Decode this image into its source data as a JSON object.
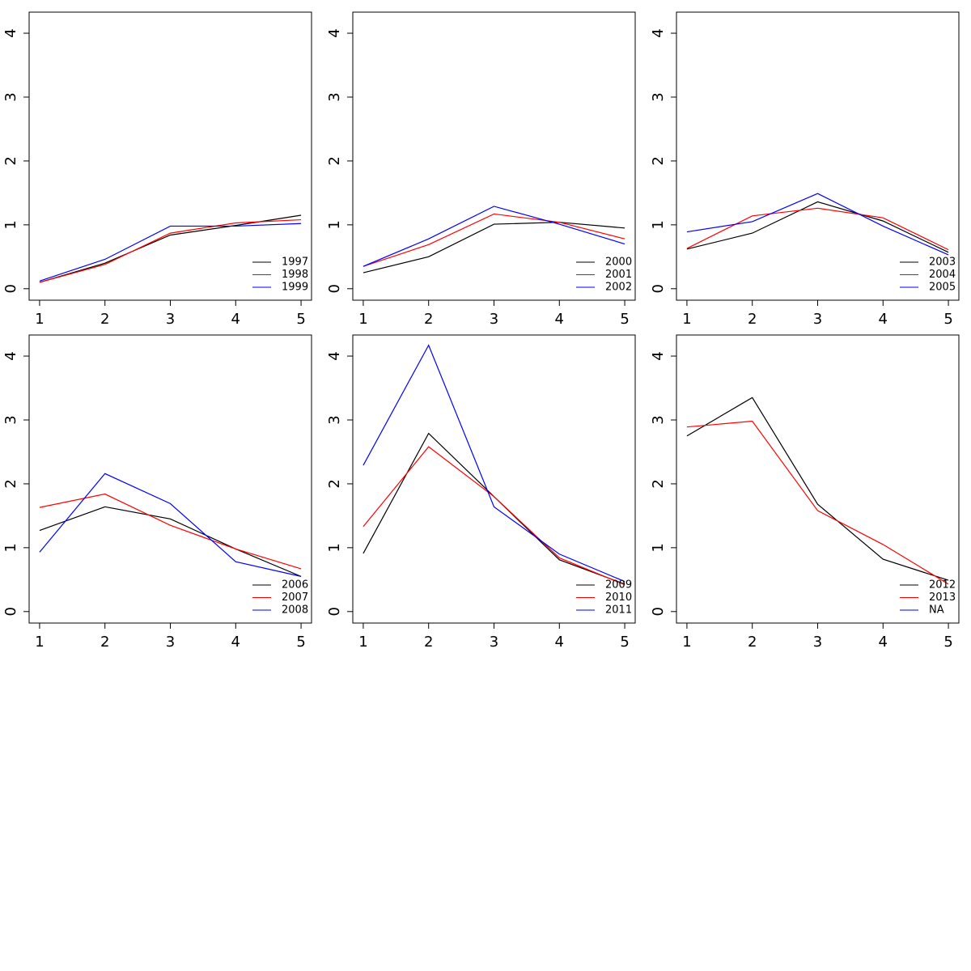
{
  "chart_data": [
    {
      "type": "line",
      "x": [
        1,
        2,
        3,
        4,
        5
      ],
      "xlim": [
        0.84,
        5.16
      ],
      "ylim": [
        -0.18,
        4.33
      ],
      "xticks": [
        1,
        2,
        3,
        4,
        5
      ],
      "yticks": [
        0,
        1,
        2,
        3,
        4
      ],
      "legend": "bottomright",
      "series": [
        {
          "name": "1997",
          "color": "#000000",
          "values": [
            0.1,
            0.4,
            0.84,
            0.99,
            1.15
          ]
        },
        {
          "name": "1998",
          "color": "#ff0000",
          "values": [
            0.1,
            0.38,
            0.87,
            1.03,
            1.08
          ]
        },
        {
          "name": "1999",
          "color": "#0000ff",
          "values": [
            0.12,
            0.46,
            0.98,
            0.98,
            1.02
          ]
        }
      ]
    },
    {
      "type": "line",
      "x": [
        1,
        2,
        3,
        4,
        5
      ],
      "xlim": [
        0.84,
        5.16
      ],
      "ylim": [
        -0.18,
        4.33
      ],
      "xticks": [
        1,
        2,
        3,
        4,
        5
      ],
      "yticks": [
        0,
        1,
        2,
        3,
        4
      ],
      "legend": "bottomright",
      "series": [
        {
          "name": "2000",
          "color": "#000000",
          "values": [
            0.25,
            0.5,
            1.01,
            1.04,
            0.95
          ]
        },
        {
          "name": "2001",
          "color": "#ff0000",
          "values": [
            0.35,
            0.69,
            1.17,
            1.04,
            0.78
          ]
        },
        {
          "name": "2002",
          "color": "#0000ff",
          "values": [
            0.35,
            0.78,
            1.29,
            1.01,
            0.7
          ]
        }
      ]
    },
    {
      "type": "line",
      "x": [
        1,
        2,
        3,
        4,
        5
      ],
      "xlim": [
        0.84,
        5.16
      ],
      "ylim": [
        -0.18,
        4.33
      ],
      "xticks": [
        1,
        2,
        3,
        4,
        5
      ],
      "yticks": [
        0,
        1,
        2,
        3,
        4
      ],
      "legend": "bottomright",
      "series": [
        {
          "name": "2003",
          "color": "#000000",
          "values": [
            0.62,
            0.87,
            1.36,
            1.06,
            0.57
          ]
        },
        {
          "name": "2004",
          "color": "#ff0000",
          "values": [
            0.63,
            1.14,
            1.26,
            1.11,
            0.61
          ]
        },
        {
          "name": "2005",
          "color": "#0000ff",
          "values": [
            0.89,
            1.05,
            1.49,
            0.98,
            0.53
          ]
        }
      ]
    },
    {
      "type": "line",
      "x": [
        1,
        2,
        3,
        4,
        5
      ],
      "xlim": [
        0.84,
        5.16
      ],
      "ylim": [
        -0.18,
        4.33
      ],
      "xticks": [
        1,
        2,
        3,
        4,
        5
      ],
      "yticks": [
        0,
        1,
        2,
        3,
        4
      ],
      "legend": "bottomright",
      "series": [
        {
          "name": "2006",
          "color": "#000000",
          "values": [
            1.27,
            1.64,
            1.45,
            0.98,
            0.55
          ]
        },
        {
          "name": "2007",
          "color": "#ff0000",
          "values": [
            1.63,
            1.84,
            1.35,
            0.98,
            0.67
          ]
        },
        {
          "name": "2008",
          "color": "#0000ff",
          "values": [
            0.93,
            2.16,
            1.69,
            0.78,
            0.55
          ]
        }
      ]
    },
    {
      "type": "line",
      "x": [
        1,
        2,
        3,
        4,
        5
      ],
      "xlim": [
        0.84,
        5.16
      ],
      "ylim": [
        -0.18,
        4.33
      ],
      "xticks": [
        1,
        2,
        3,
        4,
        5
      ],
      "yticks": [
        0,
        1,
        2,
        3,
        4
      ],
      "legend": "bottomright",
      "series": [
        {
          "name": "2009",
          "color": "#000000",
          "values": [
            0.91,
            2.79,
            1.8,
            0.81,
            0.43
          ]
        },
        {
          "name": "2010",
          "color": "#ff0000",
          "values": [
            1.33,
            2.58,
            1.8,
            0.84,
            0.42
          ]
        },
        {
          "name": "2011",
          "color": "#0000ff",
          "values": [
            2.29,
            4.17,
            1.64,
            0.9,
            0.47
          ]
        }
      ]
    },
    {
      "type": "line",
      "x": [
        1,
        2,
        3,
        4,
        5
      ],
      "xlim": [
        0.84,
        5.16
      ],
      "ylim": [
        -0.18,
        4.33
      ],
      "xticks": [
        1,
        2,
        3,
        4,
        5
      ],
      "yticks": [
        0,
        1,
        2,
        3,
        4
      ],
      "legend": "bottomright",
      "series": [
        {
          "name": "2012",
          "color": "#000000",
          "values": [
            2.75,
            3.35,
            1.68,
            0.82,
            0.49
          ]
        },
        {
          "name": "2013",
          "color": "#ff0000",
          "values": [
            2.89,
            2.98,
            1.58,
            1.05,
            0.43
          ]
        },
        {
          "name": "NA",
          "color": "#0000ff",
          "values": [
            null,
            null,
            null,
            null,
            null
          ]
        }
      ]
    }
  ]
}
